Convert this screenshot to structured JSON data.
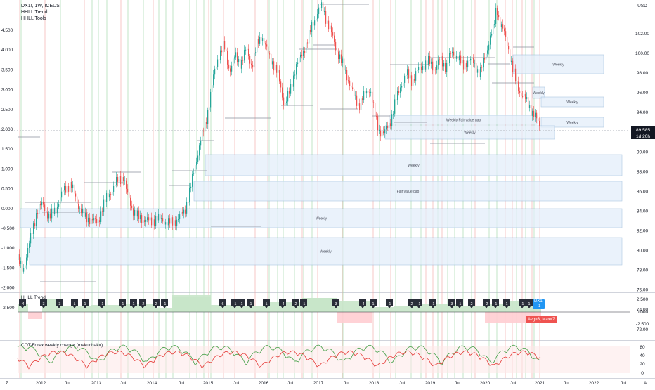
{
  "legend": {
    "symbol_line": "DX1!, 1W, ICEUS",
    "indicator1": "HHLL Trend",
    "indicator2": "HHLL Tools"
  },
  "right_axis": {
    "currency": "USD",
    "labels": [
      "102.00",
      "100.00",
      "98.00",
      "96.00",
      "94.00",
      "92.00",
      "90.00",
      "88.00",
      "86.00",
      "84.00",
      "82.00",
      "80.00",
      "78.00",
      "76.00",
      "74.00",
      "72.00"
    ],
    "last_price": "89.585",
    "countdown": "1d 20h"
  },
  "left_axis": {
    "labels": [
      "4.500",
      "4.000",
      "3.500",
      "3.000",
      "2.500",
      "2.000",
      "1.500",
      "1.000",
      "0.500",
      "0.000",
      "-0.500",
      "-1.000",
      "-1.500",
      "-2.000",
      "-2.500"
    ]
  },
  "zones": [
    {
      "label": "Weekly"
    },
    {
      "label": "Weekly"
    },
    {
      "label": "Weekly"
    },
    {
      "label": "Weekly Fair value gap"
    },
    {
      "label": "Weekly"
    },
    {
      "label": "Weekly"
    },
    {
      "label": "Fair value gap"
    },
    {
      "label": "Weekly"
    },
    {
      "label": "Weekly"
    },
    {
      "label": "Weekly"
    }
  ],
  "pane2": {
    "title": "HHLL Trend",
    "axis": [
      "2.500",
      "0.000",
      "-2.500"
    ],
    "badges": [
      "-4",
      "3",
      "-3",
      "1",
      "1",
      "-1",
      "-1",
      "1",
      "-2",
      "2",
      "-1",
      "6",
      "-1",
      "1",
      "1",
      "1",
      "-4",
      "2",
      "-1",
      "3",
      "-4",
      "1",
      "-1",
      "2",
      "-1",
      "-1",
      "3",
      "-1",
      "2",
      "-2",
      "-1",
      "1",
      "-1",
      "1"
    ],
    "symbol_tag": "DX1!",
    "symbol_tag_value": "-1",
    "stats_tag": "Avg=3, Max=7"
  },
  "pane3": {
    "title": "COT-Forex weekly change (makuchaku)",
    "axis": [
      "80",
      "40",
      "20",
      "0"
    ]
  },
  "time_axis": {
    "labels": [
      "2012",
      "Jul",
      "2013",
      "Jul",
      "2014",
      "Jul",
      "2015",
      "Jul",
      "2016",
      "Jul",
      "2017",
      "Jul",
      "2018",
      "Jul",
      "2019",
      "Jul",
      "2020",
      "Jul",
      "2021",
      "Jul",
      "2022",
      "Jul"
    ],
    "left_corner": "Z",
    "right_corner": "A"
  },
  "colors": {
    "up": "#26a69a",
    "down": "#ef5350",
    "zone_fill": "#e3eefa",
    "zone_stroke": "#90b4d8",
    "badge": "#2a2e39",
    "accent_blue": "#2196f3",
    "accent_red": "#ef5350"
  }
}
